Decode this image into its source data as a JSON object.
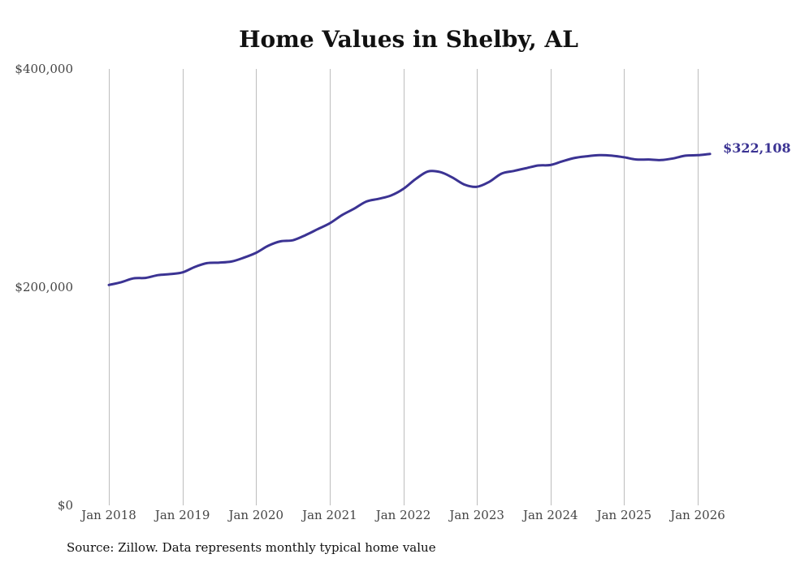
{
  "colors": {
    "line": "#3b3393",
    "grid": "#bdbdbd",
    "text": "#444444"
  },
  "chart_data": {
    "type": "line",
    "title": "Home Values in Shelby, AL",
    "xlabel": "",
    "ylabel": "",
    "ylim": [
      0,
      400000
    ],
    "y_ticks": [
      {
        "value": 0,
        "label": "$0"
      },
      {
        "value": 200000,
        "label": "$200,000"
      },
      {
        "value": 400000,
        "label": "$400,000"
      }
    ],
    "x_ticks": [
      {
        "value": 2018,
        "label": "Jan 2018"
      },
      {
        "value": 2019,
        "label": "Jan 2019"
      },
      {
        "value": 2020,
        "label": "Jan 2020"
      },
      {
        "value": 2021,
        "label": "Jan 2021"
      },
      {
        "value": 2022,
        "label": "Jan 2022"
      },
      {
        "value": 2023,
        "label": "Jan 2023"
      },
      {
        "value": 2024,
        "label": "Jan 2024"
      },
      {
        "value": 2025,
        "label": "Jan 2025"
      },
      {
        "value": 2026,
        "label": "Jan 2026"
      }
    ],
    "xlim": [
      2018,
      2026.167
    ],
    "grid": "vertical",
    "series": [
      {
        "name": "Typical home value",
        "x": [
          2018,
          2018.167,
          2018.333,
          2018.5,
          2018.667,
          2018.833,
          2019,
          2019.167,
          2019.333,
          2019.5,
          2019.667,
          2019.833,
          2020,
          2020.167,
          2020.333,
          2020.5,
          2020.667,
          2020.833,
          2021,
          2021.167,
          2021.333,
          2021.5,
          2021.667,
          2021.833,
          2022,
          2022.167,
          2022.333,
          2022.5,
          2022.667,
          2022.833,
          2023,
          2023.167,
          2023.333,
          2023.5,
          2023.667,
          2023.833,
          2024,
          2024.167,
          2024.333,
          2024.5,
          2024.667,
          2024.833,
          2025,
          2025.167,
          2025.333,
          2025.5,
          2025.667,
          2025.833,
          2026,
          2026.167
        ],
        "values": [
          202000,
          204500,
          208000,
          208500,
          211000,
          212000,
          213500,
          218500,
          222000,
          222500,
          223500,
          227000,
          231500,
          238000,
          242000,
          243000,
          247500,
          253000,
          258500,
          266000,
          272000,
          278500,
          281000,
          284000,
          290000,
          299000,
          306000,
          305500,
          300500,
          294000,
          292000,
          296500,
          304000,
          306500,
          309000,
          311500,
          312000,
          315500,
          318500,
          320000,
          321000,
          320500,
          319000,
          317000,
          317000,
          316500,
          318000,
          320500,
          321000,
          322108
        ]
      }
    ],
    "annotations": [
      {
        "text": "$322,108",
        "at": "last-point"
      }
    ]
  },
  "footer": {
    "source": "Source: Zillow. Data represents monthly typical home value"
  }
}
